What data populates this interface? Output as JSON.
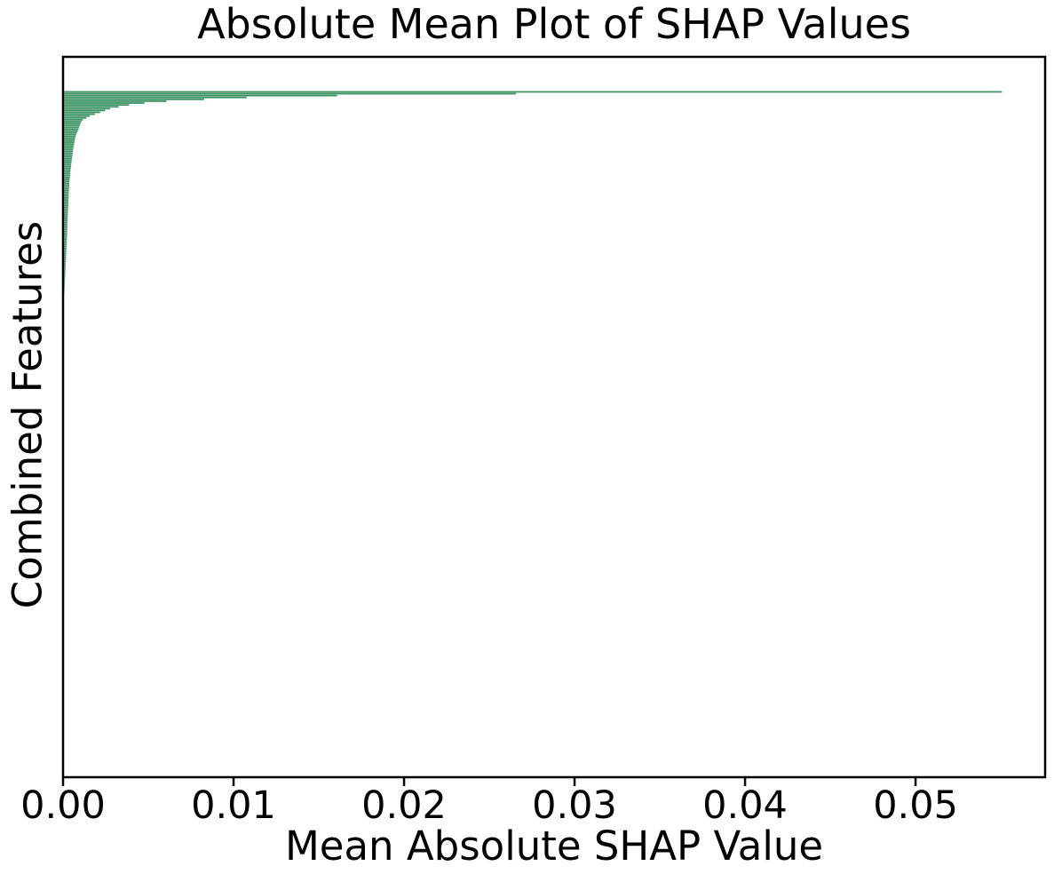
{
  "chart_data": {
    "type": "bar",
    "orientation": "horizontal",
    "title": "Absolute Mean Plot of SHAP Values",
    "xlabel": "Mean Absolute SHAP Value",
    "ylabel": "Combined Features",
    "x_ticks": [
      "0.00",
      "0.01",
      "0.02",
      "0.03",
      "0.04",
      "0.05"
    ],
    "x_tick_values": [
      0,
      0.01,
      0.02,
      0.03,
      0.04,
      0.05
    ],
    "xlim": [
      0,
      0.0576
    ],
    "grid": false,
    "legend": "none",
    "bar_color": "#2e8b57",
    "spine_color": "#000000",
    "text_color": "#000000",
    "sort_order": "descending_from_top",
    "y_tick_labels": "none",
    "total_features": 350,
    "trailing_zero_features": 240,
    "values_top_to_bottom": [
      0.055,
      0.0265,
      0.016,
      0.0107,
      0.0082,
      0.006,
      0.0047,
      0.0038,
      0.0032,
      0.0027,
      0.0024,
      0.0021,
      0.0018,
      0.0015,
      0.0013,
      0.0011,
      0.001,
      0.00096,
      0.00092,
      0.00088,
      0.00084,
      0.0008,
      0.00075,
      0.0007,
      0.00067,
      0.00064,
      0.00062,
      0.0006,
      0.00058,
      0.00056,
      0.00054,
      0.00053,
      0.00051,
      0.0005,
      0.00048,
      0.00047,
      0.00045,
      0.00044,
      0.00042,
      0.00041,
      0.0004,
      0.00039,
      0.00037,
      0.00036,
      0.00035,
      0.00034,
      0.00033,
      0.00032,
      0.00031,
      0.0003,
      0.0003,
      0.00029,
      0.00028,
      0.00028,
      0.00027,
      0.00027,
      0.00026,
      0.00026,
      0.00025,
      0.00025,
      0.00024,
      0.00024,
      0.00023,
      0.00023,
      0.00022,
      0.00022,
      0.00021,
      0.00021,
      0.0002,
      0.0002,
      0.00019,
      0.00019,
      0.00019,
      0.00018,
      0.00018,
      0.00018,
      0.00017,
      0.00017,
      0.00016,
      0.00016,
      0.00015,
      0.00015,
      0.00014,
      0.00014,
      0.00013,
      0.00013,
      0.00012,
      0.00012,
      0.00011,
      0.00011,
      0.0001,
      0.0001,
      9e-05,
      9e-05,
      8e-05,
      8e-05,
      7e-05,
      7e-05,
      6e-05,
      6e-05,
      5e-05,
      5e-05,
      4e-05,
      4e-05,
      3e-05,
      3e-05,
      2e-05,
      2e-05,
      1e-05,
      1e-05
    ]
  }
}
